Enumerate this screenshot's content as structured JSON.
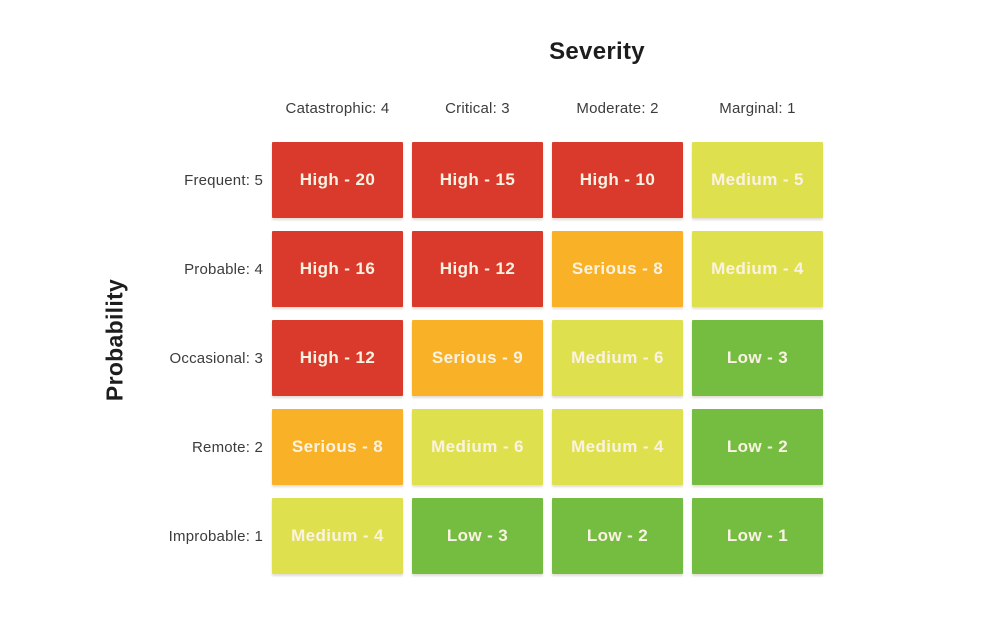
{
  "title": "Severity",
  "y_axis": "Probability",
  "columns": [
    "Catastrophic: 4",
    "Critical: 3",
    "Moderate: 2",
    "Marginal: 1"
  ],
  "rows": [
    {
      "label": "Frequent: 5",
      "cells": [
        {
          "text": "High - 20",
          "level": "high"
        },
        {
          "text": "High - 15",
          "level": "high"
        },
        {
          "text": "High - 10",
          "level": "high"
        },
        {
          "text": "Medium - 5",
          "level": "medium"
        }
      ]
    },
    {
      "label": "Probable: 4",
      "cells": [
        {
          "text": "High - 16",
          "level": "high"
        },
        {
          "text": "High - 12",
          "level": "high"
        },
        {
          "text": "Serious - 8",
          "level": "serious"
        },
        {
          "text": "Medium - 4",
          "level": "medium"
        }
      ]
    },
    {
      "label": "Occasional: 3",
      "cells": [
        {
          "text": "High - 12",
          "level": "high"
        },
        {
          "text": "Serious - 9",
          "level": "serious"
        },
        {
          "text": "Medium - 6",
          "level": "medium"
        },
        {
          "text": "Low - 3",
          "level": "low"
        }
      ]
    },
    {
      "label": "Remote: 2",
      "cells": [
        {
          "text": "Serious - 8",
          "level": "serious"
        },
        {
          "text": "Medium - 6",
          "level": "medium"
        },
        {
          "text": "Medium - 4",
          "level": "medium"
        },
        {
          "text": "Low - 2",
          "level": "low"
        }
      ]
    },
    {
      "label": "Improbable: 1",
      "cells": [
        {
          "text": "Medium - 4",
          "level": "medium"
        },
        {
          "text": "Low - 3",
          "level": "low"
        },
        {
          "text": "Low - 2",
          "level": "low"
        },
        {
          "text": "Low - 1",
          "level": "low"
        }
      ]
    }
  ],
  "colors": {
    "high": "#d93a2b",
    "serious": "#f9b227",
    "medium": "#dfe04e",
    "low": "#74bd40",
    "cell_text": "#faf3e4",
    "label_text": "#3c3c3c",
    "title_text": "#1d1d1d"
  },
  "chart_data": {
    "type": "heatmap",
    "title": "Severity",
    "xlabel": "Severity",
    "ylabel": "Probability",
    "x_categories": [
      "Catastrophic: 4",
      "Critical: 3",
      "Moderate: 2",
      "Marginal: 1"
    ],
    "y_categories": [
      "Frequent: 5",
      "Probable: 4",
      "Occasional: 3",
      "Remote: 2",
      "Improbable: 1"
    ],
    "series": [
      {
        "name": "Frequent: 5",
        "values": [
          20,
          15,
          10,
          5
        ],
        "labels": [
          "High",
          "High",
          "High",
          "Medium"
        ]
      },
      {
        "name": "Probable: 4",
        "values": [
          16,
          12,
          8,
          4
        ],
        "labels": [
          "High",
          "High",
          "Serious",
          "Medium"
        ]
      },
      {
        "name": "Occasional: 3",
        "values": [
          12,
          9,
          6,
          3
        ],
        "labels": [
          "High",
          "Serious",
          "Medium",
          "Low"
        ]
      },
      {
        "name": "Remote: 2",
        "values": [
          8,
          6,
          4,
          2
        ],
        "labels": [
          "Serious",
          "Medium",
          "Medium",
          "Low"
        ]
      },
      {
        "name": "Improbable: 1",
        "values": [
          4,
          3,
          2,
          1
        ],
        "labels": [
          "Medium",
          "Low",
          "Low",
          "Low"
        ]
      }
    ],
    "color_scale": {
      "High": "#d93a2b",
      "Serious": "#f9b227",
      "Medium": "#dfe04e",
      "Low": "#74bd40"
    },
    "legend_position": "none",
    "grid": false
  }
}
